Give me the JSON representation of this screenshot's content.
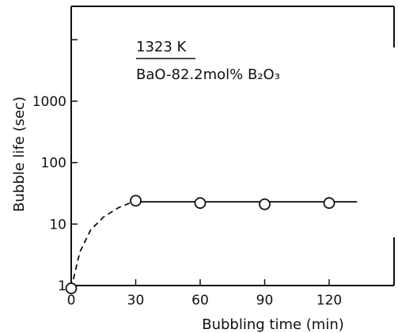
{
  "chart_data": {
    "type": "scatter",
    "title": "",
    "xlabel": "Bubbling time (min)",
    "ylabel": "Bubble life (sec)",
    "xlim": [
      0,
      135
    ],
    "ylim": [
      1,
      10000
    ],
    "yscale": "log",
    "grid": false,
    "xticks": [
      0,
      30,
      60,
      90,
      120
    ],
    "xtick_labels": [
      "0",
      "30",
      "60",
      "90",
      "120"
    ],
    "yticks": [
      1,
      10,
      100,
      1000
    ],
    "ytick_labels": [
      "1",
      "10",
      "100",
      "1000"
    ],
    "series": [
      {
        "points": [
          {
            "x": 0,
            "y": 0.9
          },
          {
            "x": 30,
            "y": 24
          },
          {
            "x": 60,
            "y": 22
          },
          {
            "x": 90,
            "y": 21
          },
          {
            "x": 120,
            "y": 22
          }
        ],
        "marker": "open-circle"
      }
    ],
    "curves": [
      {
        "style": "dashed",
        "points": [
          [
            0,
            0.9
          ],
          [
            4,
            3.5
          ],
          [
            9,
            8
          ],
          [
            15,
            13
          ],
          [
            22,
            18.5
          ],
          [
            30,
            24
          ]
        ]
      },
      {
        "style": "solid",
        "points": [
          [
            30,
            23
          ],
          [
            133,
            23
          ]
        ]
      }
    ],
    "annotations": {
      "temperature": "1323 K",
      "composition": "BaO-82.2mol% B₂O₃"
    }
  }
}
